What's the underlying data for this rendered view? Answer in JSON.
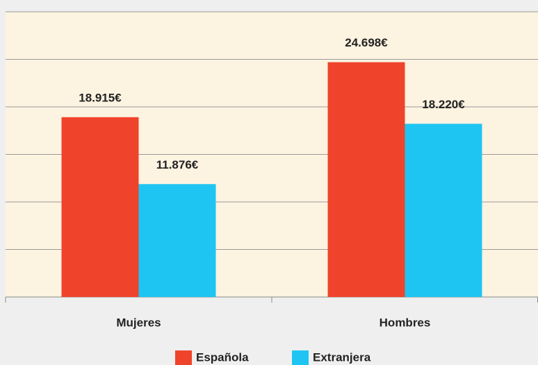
{
  "chart_data": {
    "type": "bar",
    "categories": [
      "Mujeres",
      "Hombres"
    ],
    "series": [
      {
        "name": "Española",
        "color": "#ef442b",
        "values": [
          18915,
          24698
        ],
        "value_labels": [
          "18.915€",
          "24.698€"
        ]
      },
      {
        "name": "Extranjera",
        "color": "#1ec5f2",
        "values": [
          11876,
          18220
        ],
        "value_labels": [
          "11.876€",
          "18.220€"
        ]
      }
    ],
    "ylim": [
      0,
      30000
    ],
    "yticks": [
      0,
      5000,
      10000,
      15000,
      20000,
      25000,
      30000
    ],
    "grid": true
  }
}
